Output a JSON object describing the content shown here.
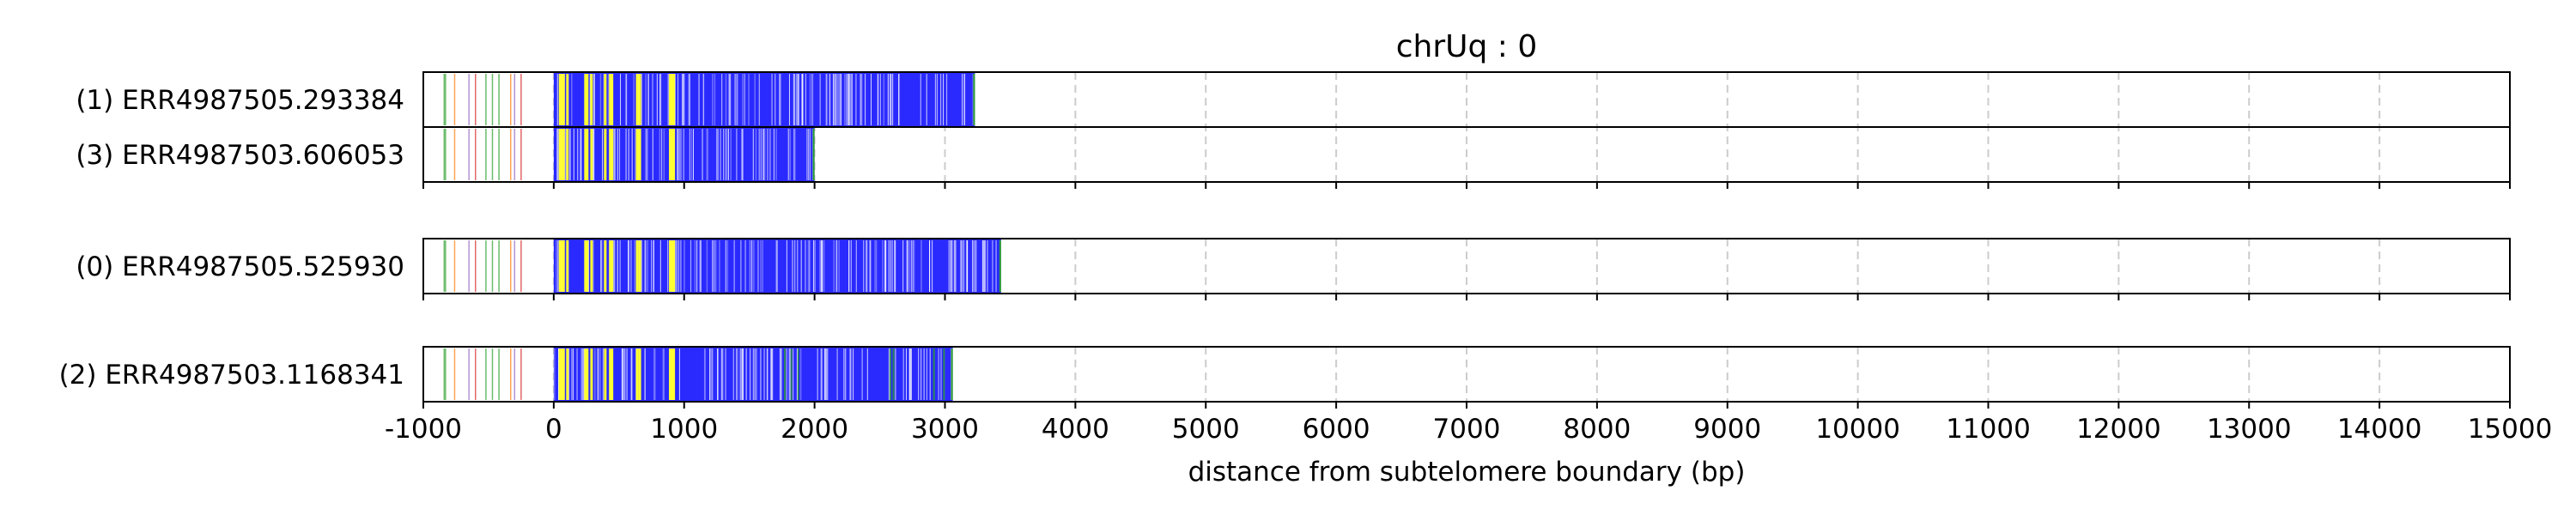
{
  "chart_data": {
    "type": "table",
    "title": "chrUq : 0",
    "xlabel": "distance from subtelomere boundary (bp)",
    "xlim": [
      -1000,
      15000
    ],
    "xticks": [
      "-1000",
      "0",
      "1000",
      "2000",
      "3000",
      "4000",
      "5000",
      "6000",
      "7000",
      "8000",
      "9000",
      "10000",
      "11000",
      "12000",
      "13000",
      "14000",
      "15000"
    ],
    "grid": "vertical dashed at each 1000 bp",
    "colors": {
      "telomere_repeat": "#2a2aff",
      "variant_yellow": "#ffff33",
      "variant_green": "#2ca02c",
      "variant_orange": "#ff7f0e",
      "variant_purple": "#9467bd",
      "variant_red": "#d62728",
      "grid": "#cccccc"
    },
    "groups": [
      {
        "reads": [
          {
            "label": "(1) ERR4987505.293384",
            "end": 3230
          },
          {
            "label": "(3) ERR4987503.606053",
            "end": 2000
          }
        ]
      },
      {
        "reads": [
          {
            "label": "(0) ERR4987505.525930",
            "end": 3430
          }
        ]
      },
      {
        "reads": [
          {
            "label": "(2) ERR4987503.1168341",
            "end": 3060
          }
        ]
      }
    ]
  }
}
